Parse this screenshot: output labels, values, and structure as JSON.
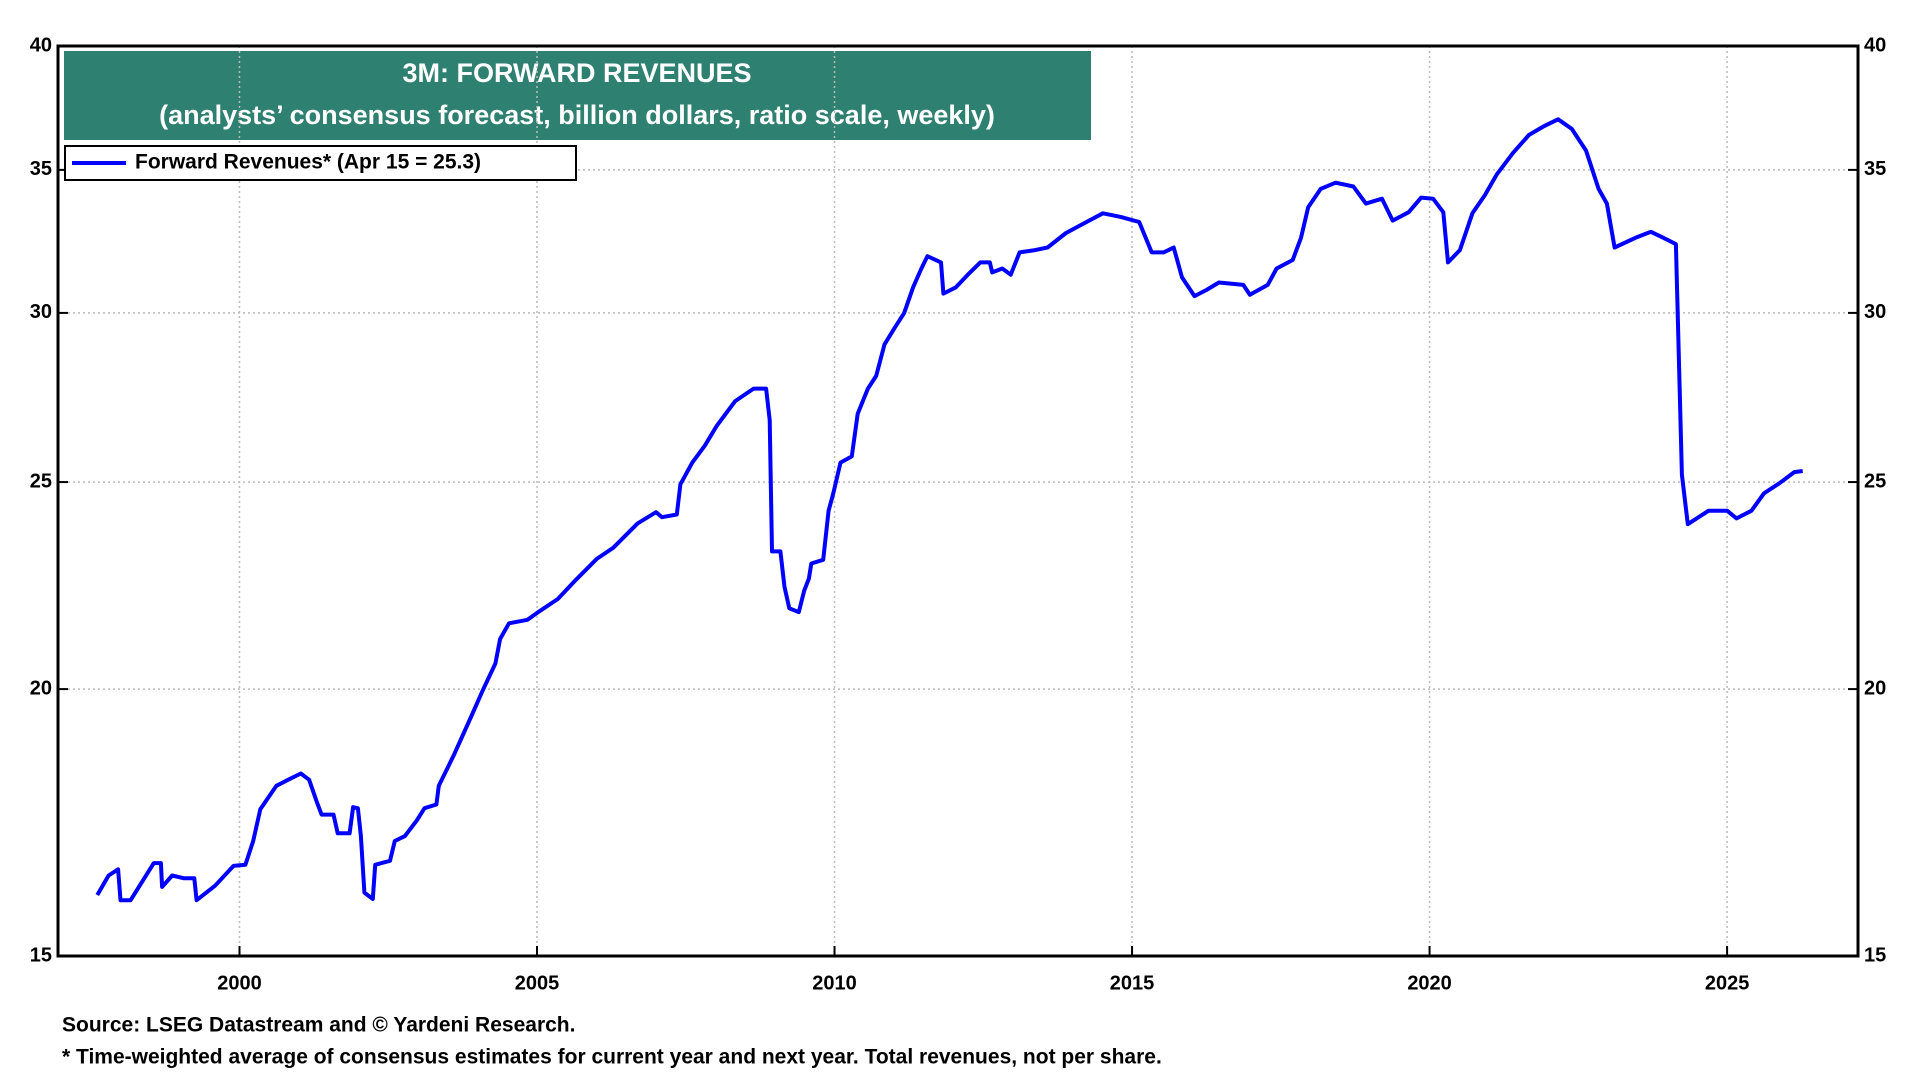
{
  "chart_data": {
    "type": "line",
    "title": "3M: FORWARD REVENUES",
    "subtitle": "(analysts’ consensus forecast, billion dollars, ratio scale, weekly)",
    "source": "Source: LSEG Datastream and © Yardeni Research.",
    "footnote": "* Time-weighted average of consensus estimates for current year and next year. Total revenues, not per share.",
    "log_scale": true,
    "grid": true,
    "legend_position": "upper left",
    "title_background": "#2e8070",
    "xlim": [
      1996.95,
      2027.2
    ],
    "xticks": [
      2000,
      2005,
      2010,
      2015,
      2020,
      2025
    ],
    "ylim": [
      15,
      40
    ],
    "yticks": [
      15,
      20,
      25,
      30,
      35,
      40
    ],
    "y2lim": [
      15,
      40
    ],
    "y2ticks": [
      15,
      20,
      25,
      30,
      35,
      40
    ],
    "x": [
      1997.61,
      1997.8,
      1997.96,
      1998.0,
      1998.17,
      1998.56,
      1998.68,
      1998.7,
      1998.87,
      1999.07,
      1999.24,
      1999.28,
      1999.59,
      1999.9,
      2000.1,
      2000.23,
      2000.35,
      2000.62,
      2000.82,
      2001.03,
      2001.17,
      2001.3,
      2001.38,
      2001.58,
      2001.65,
      2001.85,
      2001.91,
      2001.99,
      2002.04,
      2002.1,
      2002.24,
      2002.28,
      2002.53,
      2002.61,
      2002.78,
      2002.98,
      2003.11,
      2003.31,
      2003.35,
      2003.6,
      2003.91,
      2004.09,
      2004.3,
      2004.38,
      2004.53,
      2004.84,
      2005.04,
      2005.35,
      2005.66,
      2006.01,
      2006.28,
      2006.69,
      2007.0,
      2007.1,
      2007.35,
      2007.41,
      2007.61,
      2007.82,
      2008.02,
      2008.33,
      2008.64,
      2008.85,
      2008.91,
      2008.95,
      2009.09,
      2009.16,
      2009.24,
      2009.4,
      2009.49,
      2009.57,
      2009.61,
      2009.81,
      2009.9,
      2009.98,
      2010.1,
      2010.29,
      2010.39,
      2010.56,
      2010.7,
      2010.84,
      2011.01,
      2011.17,
      2011.32,
      2011.46,
      2011.56,
      2011.79,
      2011.83,
      2012.04,
      2012.24,
      2012.45,
      2012.61,
      2012.65,
      2012.82,
      2012.96,
      2013.11,
      2013.37,
      2013.58,
      2013.89,
      2014.2,
      2014.51,
      2014.81,
      2015.12,
      2015.33,
      2015.53,
      2015.7,
      2015.84,
      2016.05,
      2016.25,
      2016.46,
      2016.87,
      2016.98,
      2017.28,
      2017.43,
      2017.7,
      2017.84,
      2017.96,
      2018.17,
      2018.42,
      2018.72,
      2018.93,
      2019.2,
      2019.38,
      2019.65,
      2019.86,
      2020.06,
      2020.23,
      2020.31,
      2020.51,
      2020.72,
      2020.93,
      2021.13,
      2021.4,
      2021.67,
      2021.91,
      2022.16,
      2022.39,
      2022.63,
      2022.84,
      2022.98,
      2023.11,
      2023.46,
      2023.72,
      2023.93,
      2024.14,
      2024.24,
      2024.34,
      2024.69,
      2025.0,
      2025.16,
      2025.41,
      2025.62,
      2025.88,
      2026.13,
      2026.27
    ],
    "series": [
      {
        "name": "Forward Revenues* (Apr 15 = 25.3)",
        "color": "#0000ff",
        "values": [
          16.02,
          16.36,
          16.47,
          15.93,
          15.93,
          16.58,
          16.58,
          16.16,
          16.36,
          16.31,
          16.31,
          15.93,
          16.18,
          16.53,
          16.55,
          16.98,
          17.57,
          18.02,
          18.14,
          18.26,
          18.14,
          17.71,
          17.47,
          17.47,
          17.12,
          17.12,
          17.61,
          17.59,
          17.07,
          16.06,
          15.95,
          16.55,
          16.62,
          16.98,
          17.07,
          17.36,
          17.59,
          17.66,
          18.02,
          18.62,
          19.46,
          19.98,
          20.56,
          21.11,
          21.47,
          21.55,
          21.75,
          22.04,
          22.51,
          23.02,
          23.29,
          23.91,
          24.2,
          24.07,
          24.14,
          24.94,
          25.53,
          26.0,
          26.56,
          27.28,
          27.65,
          27.65,
          26.73,
          23.2,
          23.2,
          22.33,
          21.82,
          21.73,
          22.24,
          22.53,
          22.9,
          22.99,
          24.24,
          24.7,
          25.53,
          25.7,
          26.91,
          27.65,
          28.03,
          29.0,
          29.52,
          29.99,
          30.84,
          31.47,
          31.89,
          31.68,
          30.63,
          30.84,
          31.26,
          31.68,
          31.68,
          31.34,
          31.47,
          31.26,
          32.02,
          32.1,
          32.19,
          32.7,
          33.05,
          33.4,
          33.27,
          33.09,
          32.02,
          32.02,
          32.19,
          31.17,
          30.55,
          30.75,
          31.0,
          30.92,
          30.59,
          30.92,
          31.47,
          31.76,
          32.53,
          33.62,
          34.29,
          34.52,
          34.38,
          33.75,
          33.93,
          33.14,
          33.44,
          33.97,
          33.93,
          33.44,
          31.68,
          32.1,
          33.4,
          34.06,
          34.83,
          35.64,
          36.34,
          36.67,
          36.96,
          36.58,
          35.73,
          34.29,
          33.75,
          32.19,
          32.53,
          32.74,
          32.53,
          32.31,
          25.2,
          23.89,
          24.24,
          24.24,
          24.04,
          24.24,
          24.7,
          24.97,
          25.27,
          25.3
        ]
      }
    ]
  }
}
